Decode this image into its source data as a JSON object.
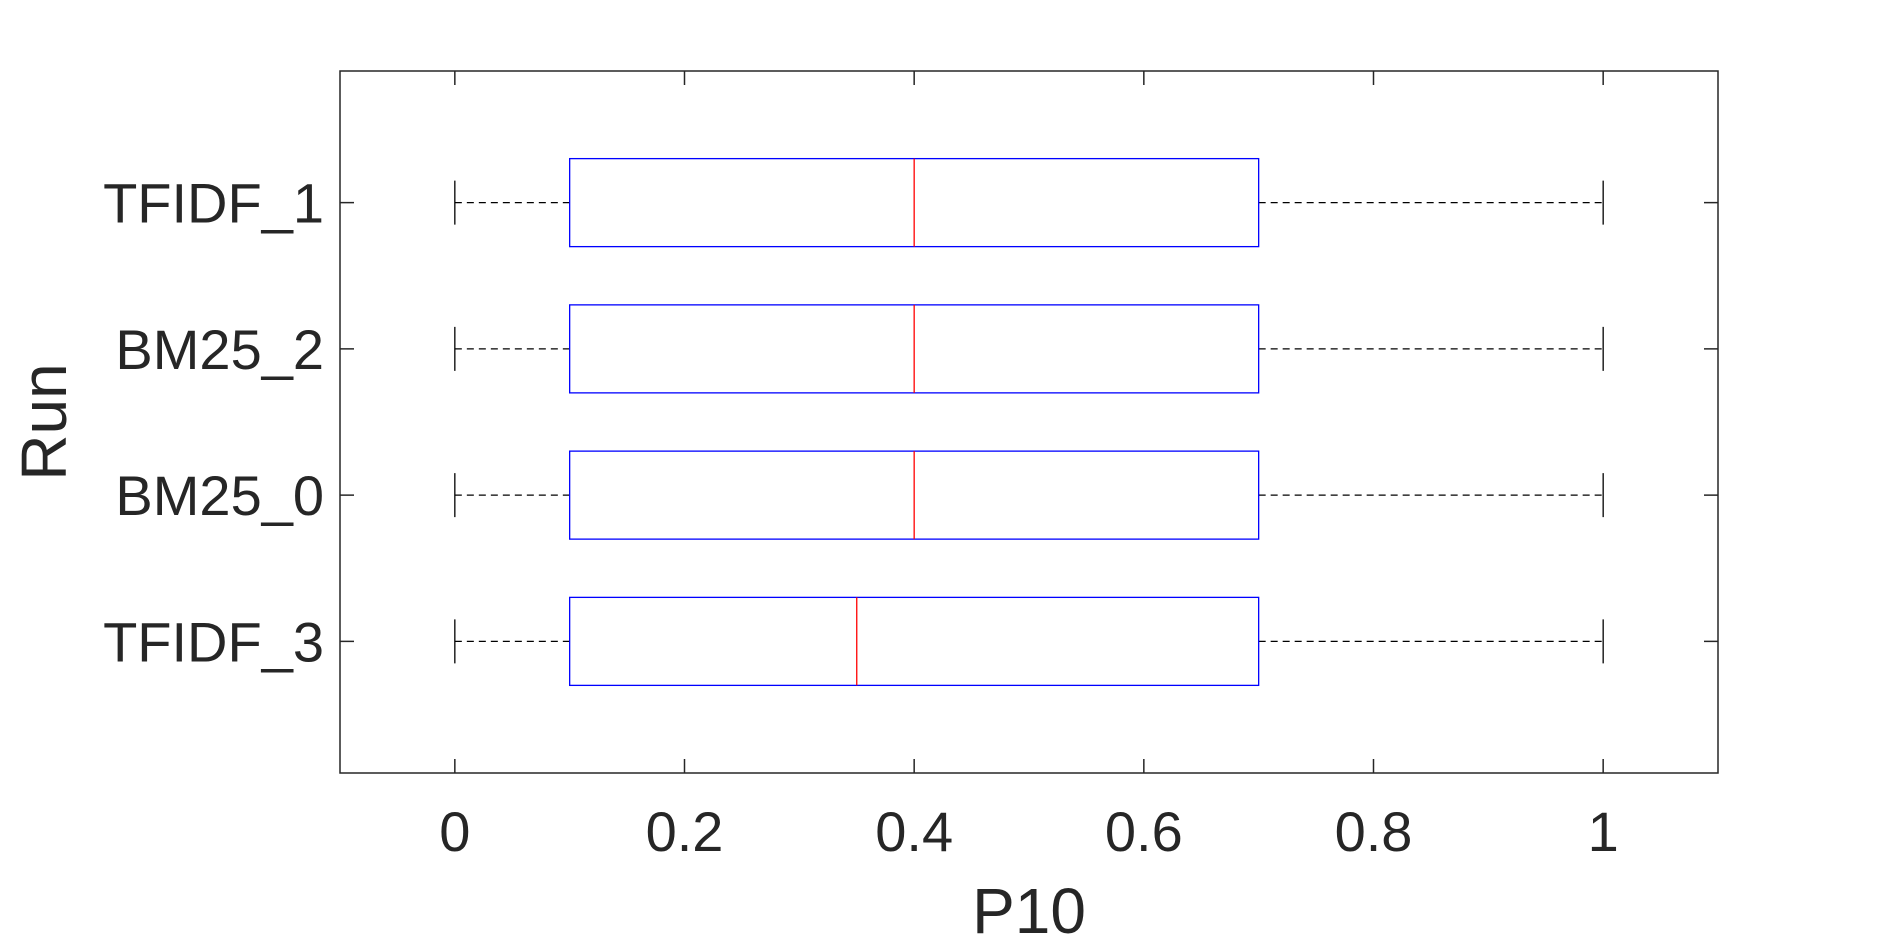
{
  "chart_data": {
    "type": "boxplot",
    "orientation": "horizontal",
    "xlabel": "P10",
    "ylabel": "Run",
    "xlim": [
      -0.1,
      1.1
    ],
    "xticks": [
      0,
      0.2,
      0.4,
      0.6,
      0.8,
      1
    ],
    "xtick_labels": [
      "0",
      "0.2",
      "0.4",
      "0.6",
      "0.8",
      "1"
    ],
    "grid": false,
    "categories": [
      "TFIDF_1",
      "BM25_2",
      "BM25_0",
      "TFIDF_3"
    ],
    "boxes": [
      {
        "name": "TFIDF_1",
        "whisker_low": 0,
        "q1": 0.1,
        "median": 0.4,
        "q3": 0.7,
        "whisker_high": 1
      },
      {
        "name": "BM25_2",
        "whisker_low": 0,
        "q1": 0.1,
        "median": 0.4,
        "q3": 0.7,
        "whisker_high": 1
      },
      {
        "name": "BM25_0",
        "whisker_low": 0,
        "q1": 0.1,
        "median": 0.4,
        "q3": 0.7,
        "whisker_high": 1
      },
      {
        "name": "TFIDF_3",
        "whisker_low": 0,
        "q1": 0.1,
        "median": 0.35,
        "q3": 0.7,
        "whisker_high": 1
      }
    ],
    "colors": {
      "box": "#0000ff",
      "median": "#ff0000",
      "whisker": "#000000",
      "axis": "#262626"
    }
  }
}
